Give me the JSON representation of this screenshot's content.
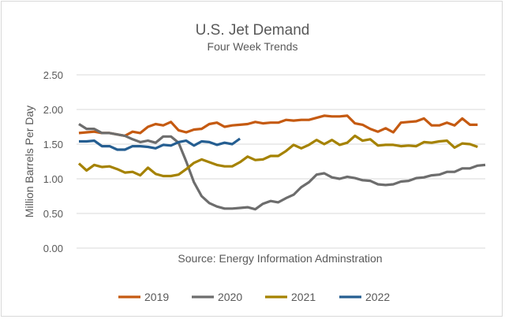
{
  "chart_data": {
    "type": "line",
    "title": "U.S. Jet Demand",
    "subtitle": "Four Week Trends",
    "ylabel": "Million Barrels Per Day",
    "xlabel": "",
    "annotation": "Source: Energy Information Adminstration",
    "ylim": [
      0,
      2.5
    ],
    "yticks": [
      "0.00",
      "0.50",
      "1.00",
      "1.50",
      "2.00",
      "2.50"
    ],
    "grid": true,
    "legend": "bottom",
    "series": [
      {
        "name": "2019",
        "color": "#c55a11",
        "values": [
          1.66,
          1.67,
          1.68,
          1.66,
          1.66,
          1.64,
          1.62,
          1.68,
          1.66,
          1.75,
          1.79,
          1.77,
          1.82,
          1.7,
          1.67,
          1.71,
          1.72,
          1.79,
          1.81,
          1.75,
          1.77,
          1.78,
          1.79,
          1.82,
          1.8,
          1.81,
          1.81,
          1.85,
          1.84,
          1.85,
          1.85,
          1.88,
          1.91,
          1.9,
          1.9,
          1.91,
          1.8,
          1.78,
          1.72,
          1.68,
          1.73,
          1.67,
          1.81,
          1.82,
          1.83,
          1.87,
          1.77,
          1.77,
          1.81,
          1.77,
          1.87,
          1.78,
          1.78
        ]
      },
      {
        "name": "2020",
        "color": "#6d6d6d",
        "values": [
          1.79,
          1.72,
          1.72,
          1.66,
          1.66,
          1.64,
          1.62,
          1.57,
          1.53,
          1.55,
          1.52,
          1.61,
          1.61,
          1.52,
          1.25,
          0.95,
          0.75,
          0.65,
          0.6,
          0.57,
          0.57,
          0.58,
          0.59,
          0.56,
          0.64,
          0.68,
          0.66,
          0.72,
          0.77,
          0.88,
          0.95,
          1.06,
          1.08,
          1.02,
          1.0,
          1.03,
          1.01,
          0.98,
          0.97,
          0.92,
          0.91,
          0.92,
          0.96,
          0.97,
          1.01,
          1.02,
          1.05,
          1.06,
          1.1,
          1.1,
          1.15,
          1.15,
          1.19,
          1.2
        ]
      },
      {
        "name": "2021",
        "color": "#a58200",
        "values": [
          1.22,
          1.12,
          1.2,
          1.17,
          1.18,
          1.14,
          1.09,
          1.1,
          1.05,
          1.16,
          1.07,
          1.04,
          1.04,
          1.06,
          1.14,
          1.23,
          1.28,
          1.24,
          1.2,
          1.18,
          1.18,
          1.24,
          1.32,
          1.27,
          1.28,
          1.33,
          1.33,
          1.4,
          1.49,
          1.44,
          1.49,
          1.56,
          1.5,
          1.56,
          1.49,
          1.52,
          1.62,
          1.55,
          1.57,
          1.48,
          1.49,
          1.49,
          1.47,
          1.48,
          1.47,
          1.53,
          1.52,
          1.54,
          1.55,
          1.45,
          1.51,
          1.5,
          1.46
        ]
      },
      {
        "name": "2022",
        "color": "#255e91",
        "values": [
          1.54,
          1.54,
          1.55,
          1.47,
          1.47,
          1.42,
          1.42,
          1.47,
          1.47,
          1.46,
          1.44,
          1.49,
          1.48,
          1.53,
          1.55,
          1.48,
          1.54,
          1.53,
          1.49,
          1.52,
          1.5,
          1.58
        ]
      }
    ]
  }
}
